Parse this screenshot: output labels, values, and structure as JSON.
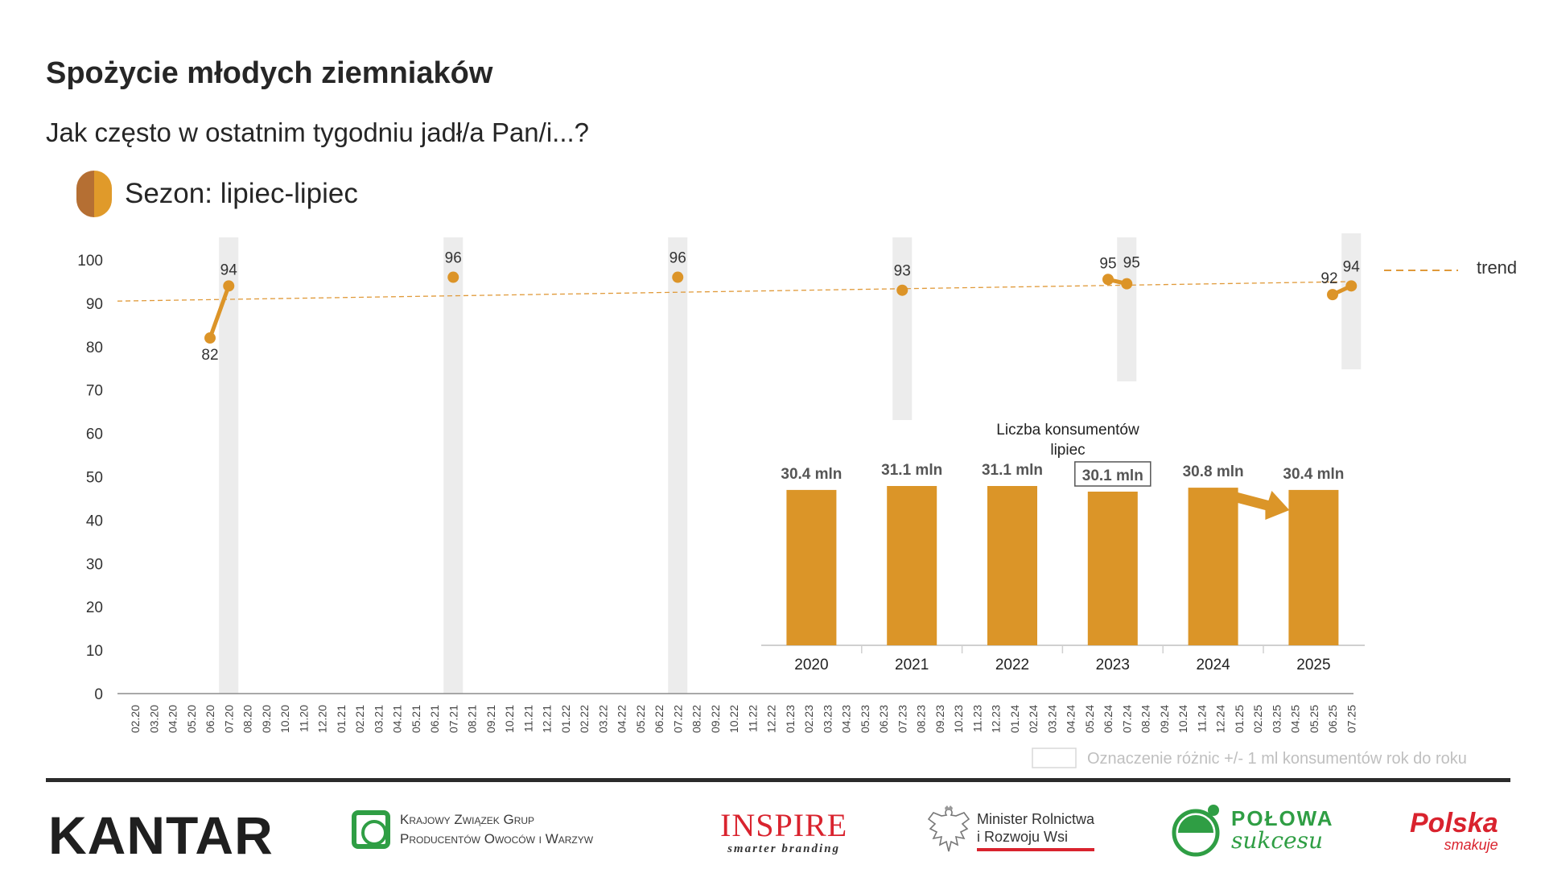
{
  "header": {
    "title": "Spożycie młodych ziemniaków",
    "subtitle": "Jak często w ostatnim tygodniu jadł/a Pan/i...?",
    "season_label": "Sezon: lipiec-lipiec"
  },
  "chart_data": [
    {
      "type": "line",
      "yticks": [
        "0",
        "10",
        "20",
        "30",
        "40",
        "50",
        "60",
        "70",
        "80",
        "90",
        "100"
      ],
      "ylim": [
        0,
        100
      ],
      "x": [
        "02.20",
        "03.20",
        "04.20",
        "05.20",
        "06.20",
        "07.20",
        "08.20",
        "09.20",
        "10.20",
        "11.20",
        "12.20",
        "01.21",
        "02.21",
        "03.21",
        "04.21",
        "05.21",
        "06.21",
        "07.21",
        "08.21",
        "09.21",
        "10.21",
        "11.21",
        "12.21",
        "01.22",
        "02.22",
        "03.22",
        "04.22",
        "05.22",
        "06.22",
        "07.22",
        "08.22",
        "09.22",
        "10.22",
        "11.22",
        "12.22",
        "01.23",
        "02.23",
        "03.23",
        "04.23",
        "05.23",
        "06.23",
        "07.23",
        "08.23",
        "09.23",
        "10.23",
        "11.23",
        "12.23",
        "01.24",
        "02.24",
        "03.24",
        "04.24",
        "05.24",
        "06.24",
        "07.24",
        "08.24",
        "09.24",
        "10.24",
        "11.24",
        "12.24",
        "01.25",
        "02.25",
        "03.25",
        "04.25",
        "05.25",
        "06.25",
        "07.25"
      ],
      "points": [
        {
          "x": "06.20",
          "y": 82,
          "label": "82"
        },
        {
          "x": "07.20",
          "y": 94,
          "label": "94"
        },
        {
          "x": "07.21",
          "y": 96,
          "label": "96"
        },
        {
          "x": "07.22",
          "y": 96,
          "label": "96"
        },
        {
          "x": "07.23",
          "y": 93,
          "label": "93"
        },
        {
          "x": "06.24",
          "y": 95.5,
          "label": "95"
        },
        {
          "x": "07.24",
          "y": 94.5,
          "label": "95"
        },
        {
          "x": "06.25",
          "y": 92,
          "label": "92"
        },
        {
          "x": "07.25",
          "y": 94,
          "label": "94"
        }
      ],
      "connected_pairs": [
        [
          "06.20",
          "07.20"
        ],
        [
          "06.24",
          "07.24"
        ],
        [
          "06.25",
          "07.25"
        ]
      ],
      "highlighted_months": [
        "07.20",
        "07.21",
        "07.22",
        "07.23",
        "07.24",
        "07.25"
      ],
      "trend": {
        "name": "trend",
        "start": 90.5,
        "end": 95
      },
      "series_color": "#dc9428",
      "trend_color": "#e09a3a",
      "legend_note": "Oznaczenie różnic +/- 1 ml konsumentów rok do roku"
    },
    {
      "type": "bar",
      "title": "Liczba konsumentów lipiec",
      "categories": [
        "2020",
        "2021",
        "2022",
        "2023",
        "2024",
        "2025"
      ],
      "values": [
        30.4,
        31.1,
        31.1,
        30.1,
        30.8,
        30.4
      ],
      "value_labels": [
        "30.4 mln",
        "31.1 mln",
        "31.1 mln",
        "30.1 mln",
        "30.8 mln",
        "30.4 mln"
      ],
      "boxed_label": "2023",
      "arrow_to": "2025",
      "color": "#db9528"
    }
  ],
  "footer": {
    "kantar": "KANTAR",
    "kzg_line1": "Krajowy Związek Grup",
    "kzg_line2": "Producentów Owoców i Warzyw",
    "inspire_name": "INSPIRE",
    "inspire_tag": "smarter branding",
    "minister_line1": "Minister Rolnictwa",
    "minister_line2": "i Rozwoju Wsi",
    "polowa_line1": "POŁOWA",
    "polowa_line2": "sukcesu",
    "polska_line1": "Polska",
    "polska_line2": "smakuje"
  }
}
